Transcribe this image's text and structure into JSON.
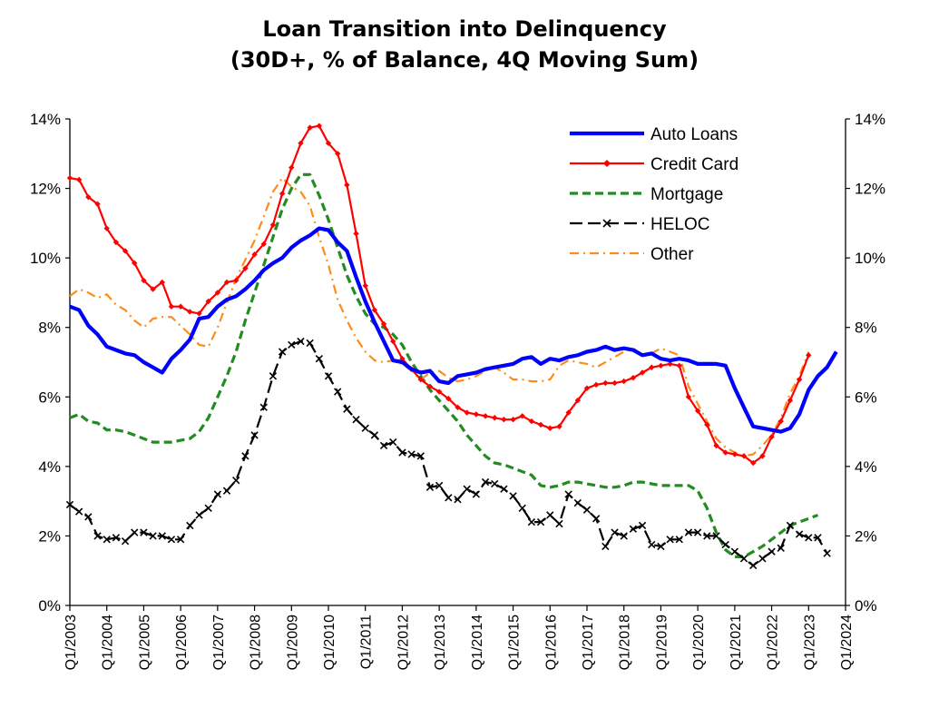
{
  "chart_data": {
    "type": "line",
    "title": "Loan Transition into Delinquency",
    "subtitle": "(30D+, % of Balance, 4Q Moving Sum)",
    "xlabel": "",
    "ylabel": "",
    "x_start": "Q1/2003",
    "x_ticks": [
      "Q1/2003",
      "Q1/2004",
      "Q1/2005",
      "Q1/2006",
      "Q1/2007",
      "Q1/2008",
      "Q1/2009",
      "Q1/2010",
      "Q1/2011",
      "Q1/2012",
      "Q1/2013",
      "Q1/2014",
      "Q1/2015",
      "Q1/2016",
      "Q1/2017",
      "Q1/2018",
      "Q1/2019",
      "Q1/2020",
      "Q1/2021",
      "Q1/2022",
      "Q1/2023",
      "Q1/2024"
    ],
    "y_ticks": [
      "0%",
      "2%",
      "4%",
      "6%",
      "8%",
      "10%",
      "12%",
      "14%"
    ],
    "y_tick_values": [
      0,
      2,
      4,
      6,
      8,
      10,
      12,
      14
    ],
    "ylim": [
      0,
      14
    ],
    "secondary_y_ticks": [
      "0%",
      "2%",
      "4%",
      "6%",
      "8%",
      "10%",
      "12%",
      "14%"
    ],
    "legend_position": "top-right",
    "grid": false,
    "series": [
      {
        "name": "Auto Loans",
        "color": "#0000FF",
        "style": "solid-thick",
        "values": [
          8.6,
          8.5,
          8.05,
          7.8,
          7.45,
          7.35,
          7.25,
          7.2,
          7.0,
          6.85,
          6.7,
          7.1,
          7.35,
          7.65,
          8.25,
          8.3,
          8.6,
          8.8,
          8.9,
          9.1,
          9.35,
          9.65,
          9.85,
          10.0,
          10.3,
          10.5,
          10.65,
          10.85,
          10.8,
          10.45,
          10.2,
          9.45,
          8.75,
          8.15,
          7.6,
          7.05,
          7.0,
          6.8,
          6.7,
          6.75,
          6.45,
          6.4,
          6.6,
          6.65,
          6.7,
          6.8,
          6.85,
          6.9,
          6.95,
          7.1,
          7.15,
          6.95,
          7.1,
          7.05,
          7.15,
          7.2,
          7.3,
          7.35,
          7.45,
          7.35,
          7.4,
          7.35,
          7.2,
          7.25,
          7.1,
          7.05,
          7.1,
          7.05,
          6.95,
          6.95,
          6.95,
          6.9,
          6.25,
          5.7,
          5.15,
          5.1,
          5.05,
          5.0,
          5.1,
          5.5,
          6.2,
          6.6,
          6.85,
          7.3
        ]
      },
      {
        "name": "Credit Card",
        "color": "#FF0000",
        "style": "solid-diamond",
        "values": [
          12.3,
          12.25,
          11.75,
          11.55,
          10.85,
          10.45,
          10.2,
          9.85,
          9.35,
          9.1,
          9.3,
          8.6,
          8.6,
          8.45,
          8.4,
          8.75,
          9.0,
          9.3,
          9.35,
          9.7,
          10.1,
          10.4,
          10.95,
          11.85,
          12.6,
          13.3,
          13.75,
          13.8,
          13.3,
          13.0,
          12.1,
          10.7,
          9.2,
          8.5,
          8.1,
          7.6,
          7.1,
          6.8,
          6.5,
          6.3,
          6.15,
          5.95,
          5.7,
          5.55,
          5.5,
          5.45,
          5.4,
          5.35,
          5.35,
          5.45,
          5.3,
          5.2,
          5.1,
          5.15,
          5.55,
          5.9,
          6.25,
          6.35,
          6.4,
          6.4,
          6.45,
          6.55,
          6.7,
          6.85,
          6.9,
          6.95,
          6.9,
          6.0,
          5.6,
          5.2,
          4.6,
          4.4,
          4.35,
          4.3,
          4.1,
          4.3,
          4.85,
          5.3,
          5.9,
          6.5,
          7.2
        ]
      },
      {
        "name": "Mortgage",
        "color": "#228B22",
        "style": "dashed",
        "values": [
          5.4,
          5.5,
          5.3,
          5.25,
          5.05,
          5.05,
          5.0,
          4.9,
          4.8,
          4.7,
          4.7,
          4.7,
          4.75,
          4.8,
          5.0,
          5.4,
          6.0,
          6.6,
          7.3,
          8.2,
          9.0,
          9.8,
          10.6,
          11.4,
          12.0,
          12.4,
          12.4,
          11.8,
          11.1,
          10.3,
          9.5,
          8.9,
          8.4,
          8.1,
          8.0,
          7.8,
          7.5,
          7.0,
          6.6,
          6.2,
          5.9,
          5.6,
          5.3,
          4.9,
          4.6,
          4.3,
          4.1,
          4.05,
          3.95,
          3.85,
          3.75,
          3.45,
          3.4,
          3.45,
          3.55,
          3.55,
          3.5,
          3.45,
          3.4,
          3.4,
          3.45,
          3.55,
          3.55,
          3.5,
          3.45,
          3.45,
          3.45,
          3.45,
          3.3,
          2.8,
          2.1,
          1.6,
          1.4,
          1.4,
          1.55,
          1.7,
          1.9,
          2.1,
          2.3,
          2.4,
          2.5,
          2.6
        ]
      },
      {
        "name": "HELOC",
        "color": "#000000",
        "style": "dash-x",
        "values": [
          2.9,
          2.7,
          2.55,
          2.0,
          1.9,
          1.95,
          1.85,
          2.1,
          2.1,
          2.0,
          2.0,
          1.9,
          1.9,
          2.3,
          2.6,
          2.8,
          3.2,
          3.3,
          3.6,
          4.3,
          4.9,
          5.7,
          6.6,
          7.3,
          7.5,
          7.6,
          7.55,
          7.1,
          6.6,
          6.15,
          5.65,
          5.35,
          5.1,
          4.9,
          4.6,
          4.7,
          4.4,
          4.35,
          4.3,
          3.4,
          3.45,
          3.1,
          3.05,
          3.35,
          3.2,
          3.55,
          3.5,
          3.35,
          3.15,
          2.8,
          2.4,
          2.4,
          2.6,
          2.35,
          3.2,
          2.95,
          2.75,
          2.5,
          1.7,
          2.1,
          2.0,
          2.2,
          2.3,
          1.75,
          1.7,
          1.9,
          1.9,
          2.1,
          2.1,
          2.0,
          2.0,
          1.75,
          1.55,
          1.35,
          1.15,
          1.35,
          1.55,
          1.65,
          2.3,
          2.05,
          1.95,
          1.95,
          1.5
        ]
      },
      {
        "name": "Other",
        "color": "#FF8C1A",
        "style": "dash-dot",
        "values": [
          8.9,
          9.1,
          9.0,
          8.85,
          8.95,
          8.65,
          8.5,
          8.2,
          8.0,
          8.25,
          8.3,
          8.3,
          8.05,
          7.8,
          7.5,
          7.45,
          8.0,
          8.7,
          9.4,
          9.95,
          10.5,
          11.2,
          11.9,
          12.3,
          12.05,
          11.9,
          11.5,
          10.6,
          9.8,
          8.8,
          8.2,
          7.7,
          7.3,
          7.05,
          7.0,
          7.05,
          6.95,
          6.75,
          6.5,
          6.7,
          6.75,
          6.55,
          6.45,
          6.5,
          6.6,
          6.75,
          6.85,
          6.7,
          6.5,
          6.5,
          6.45,
          6.45,
          6.5,
          6.9,
          7.05,
          7.0,
          6.95,
          6.85,
          7.0,
          7.15,
          7.3,
          7.4,
          7.2,
          7.25,
          7.4,
          7.3,
          7.2,
          6.3,
          5.8,
          5.3,
          4.8,
          4.55,
          4.4,
          4.3,
          4.35,
          4.6,
          4.9,
          5.4,
          6.1,
          6.6,
          7.3
        ]
      }
    ]
  }
}
